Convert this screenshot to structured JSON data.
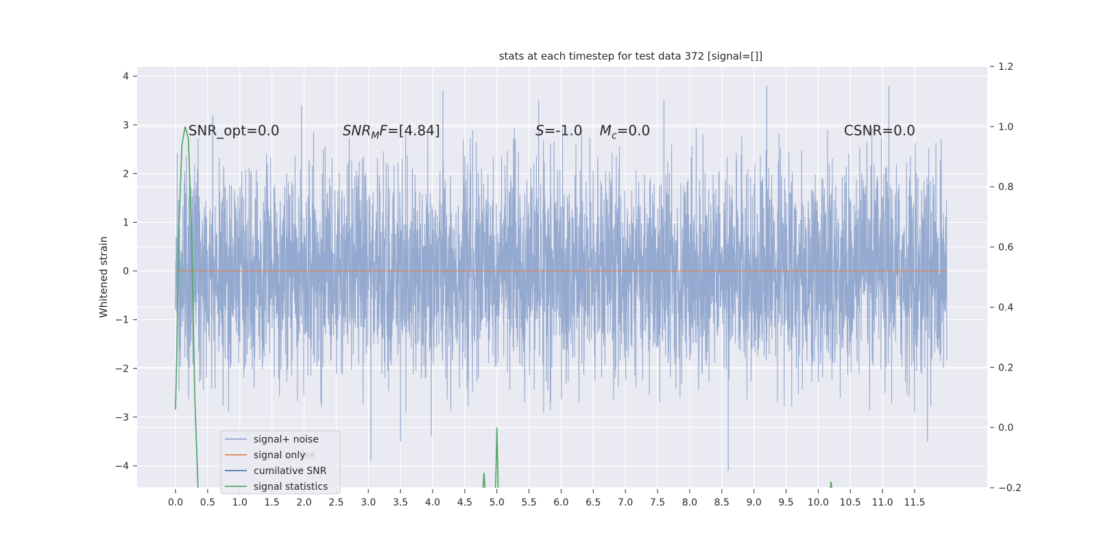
{
  "chart_data": {
    "type": "line",
    "title": "stats at each timestep for test data 372 [signal=[]]",
    "ylabel": "Whitened strain",
    "ylabel_right": "",
    "xlabel": "",
    "xlim": [
      -0.6,
      12.3
    ],
    "ylim": [
      -4.45,
      4.2
    ],
    "ylim_right": [
      -0.2,
      1.2
    ],
    "xticks": [
      "0.0",
      "0.5",
      "1.0",
      "1.5",
      "2.0",
      "2.5",
      "3.0",
      "3.5",
      "4.0",
      "4.5",
      "5.0",
      "5.5",
      "6.0",
      "6.5",
      "7.0",
      "7.5",
      "8.0",
      "8.5",
      "9.0",
      "9.5",
      "10.0",
      "10.5",
      "11.0",
      "11.5"
    ],
    "yticks_left": [
      4,
      3,
      2,
      1,
      0,
      -1,
      -2,
      -3,
      -4
    ],
    "yticks_right": [
      1.2,
      1.0,
      0.8,
      0.6,
      0.4,
      0.2,
      0.0,
      -0.2
    ],
    "grid": true,
    "legend_position": "lower-left",
    "series": [
      {
        "name": "signal+ noise",
        "axis": "left",
        "color": "#8fa5cc",
        "description": "whitened noise spanning 0 to 12, envelope about -3 to +3 with peaks to about 3.8 and dips to about -4.1",
        "x_range": [
          0.0,
          12.0
        ],
        "spikes": [
          {
            "x": 0.58,
            "y": 3.2
          },
          {
            "x": 1.96,
            "y": 3.4
          },
          {
            "x": 4.16,
            "y": 3.7
          },
          {
            "x": 5.65,
            "y": 3.5
          },
          {
            "x": 7.6,
            "y": 3.5
          },
          {
            "x": 9.2,
            "y": 3.8
          },
          {
            "x": 11.1,
            "y": 3.8
          },
          {
            "x": 3.04,
            "y": -3.9
          },
          {
            "x": 8.6,
            "y": -4.1
          },
          {
            "x": 3.5,
            "y": -3.5
          },
          {
            "x": 3.98,
            "y": -3.4
          },
          {
            "x": 11.7,
            "y": -3.5
          }
        ]
      },
      {
        "name": "signal only",
        "axis": "left",
        "color": "#dd8452",
        "x": [
          0.0,
          12.0
        ],
        "y": [
          0.0,
          0.0
        ]
      },
      {
        "name": "cumilative SNR",
        "axis": "right",
        "color": "#4c72b0",
        "x": [],
        "y": []
      },
      {
        "name": "signal statistics",
        "axis": "right",
        "color": "#55a868",
        "x": [
          0.0,
          0.02,
          0.05,
          0.1,
          0.15,
          0.2,
          0.25,
          0.3,
          0.35
        ],
        "y": [
          0.06,
          0.25,
          0.65,
          0.94,
          1.0,
          0.96,
          0.65,
          0.1,
          -0.2
        ],
        "blips": [
          {
            "x": 4.8,
            "y_top": -0.15
          },
          {
            "x": 5.0,
            "y_top": 0.0
          },
          {
            "x": 10.2,
            "y_top": -0.18
          }
        ]
      }
    ],
    "annotations": [
      {
        "x": 0.2,
        "y": 2.9,
        "parts": [
          {
            "text": "SNR_opt=0.0",
            "italic": false
          }
        ]
      },
      {
        "x": 2.6,
        "y": 2.9,
        "parts": [
          {
            "text": "SNR",
            "italic": true
          },
          {
            "text": "M",
            "italic": true,
            "sub": true
          },
          {
            "text": "F",
            "italic": true
          },
          {
            "text": "=[4.84]",
            "italic": false
          }
        ]
      },
      {
        "x": 5.6,
        "y": 2.9,
        "parts": [
          {
            "text": "S",
            "italic": true
          },
          {
            "text": "=-1.0",
            "italic": false
          }
        ]
      },
      {
        "x": 6.6,
        "y": 2.9,
        "parts": [
          {
            "text": "M",
            "italic": true
          },
          {
            "text": "c",
            "italic": true,
            "sub": true
          },
          {
            "text": "=0.0",
            "italic": false
          }
        ]
      },
      {
        "x": 10.4,
        "y": 2.9,
        "parts": [
          {
            "text": "CSNR=0.0",
            "italic": false
          }
        ]
      }
    ],
    "legend_ghost_text": "ise"
  }
}
